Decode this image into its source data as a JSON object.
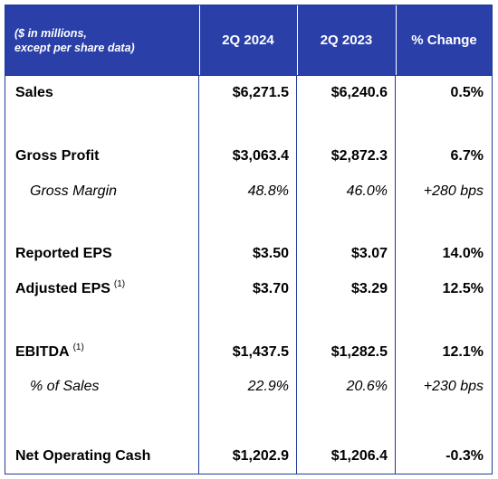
{
  "header": {
    "caption": "($ in millions,\nexcept per share data)",
    "col1": "2Q 2024",
    "col2": "2Q 2023",
    "col3": "% Change"
  },
  "rows": [
    {
      "label": "Sales",
      "note": "",
      "v1": "$6,271.5",
      "v2": "$6,240.6",
      "v3": "0.5%"
    },
    {
      "label": "Gross Profit",
      "note": "",
      "v1": "$3,063.4",
      "v2": "$2,872.3",
      "v3": "6.7%"
    },
    {
      "label": "Gross Margin",
      "note": "",
      "v1": "48.8%",
      "v2": "46.0%",
      "v3": "+280 bps"
    },
    {
      "label": "Reported EPS",
      "note": "",
      "v1": "$3.50",
      "v2": "$3.07",
      "v3": "14.0%"
    },
    {
      "label": "Adjusted EPS",
      "note": "(1)",
      "v1": "$3.70",
      "v2": "$3.29",
      "v3": "12.5%"
    },
    {
      "label": "EBITDA",
      "note": "(1)",
      "v1": "$1,437.5",
      "v2": "$1,282.5",
      "v3": "12.1%"
    },
    {
      "label": "% of Sales",
      "note": "",
      "v1": "22.9%",
      "v2": "20.6%",
      "v3": "+230 bps"
    },
    {
      "label": "Net Operating Cash",
      "note": "",
      "v1": "$1,202.9",
      "v2": "$1,206.4",
      "v3": "-0.3%"
    }
  ],
  "colors": {
    "header_bg": "#2a3fa8",
    "border": "#1f3b9a"
  }
}
